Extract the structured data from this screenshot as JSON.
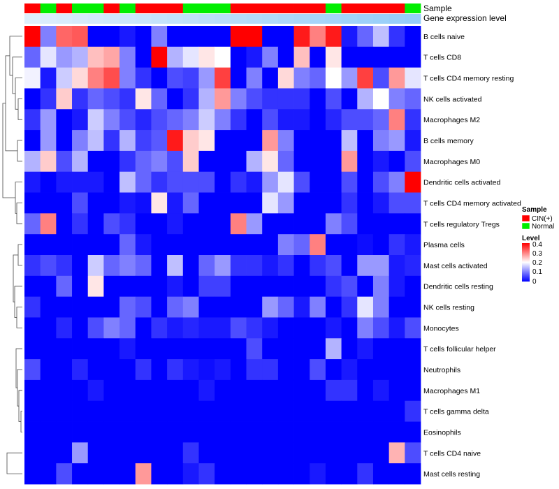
{
  "chart_data": {
    "type": "heatmap",
    "title": "",
    "annotation_labels": {
      "sample": "Sample",
      "gene": "Gene expression level"
    },
    "legend": {
      "sample_title": "Sample",
      "sample_items": [
        {
          "label": "CIN(+)",
          "color": "#ff0000"
        },
        {
          "label": "Normal",
          "color": "#00ee00"
        }
      ],
      "level_title": "Level",
      "level_ticks": [
        "0.4",
        "0.3",
        "0.2",
        "0.1",
        "0"
      ],
      "level_range": [
        0,
        0.4
      ]
    },
    "color_scale": {
      "low": "#0000ff",
      "mid": "#ffffff",
      "high": "#ff0000",
      "min": 0,
      "max": 0.4
    },
    "sample_groups": [
      "C",
      "N",
      "C",
      "N",
      "N",
      "C",
      "N",
      "C",
      "C",
      "C",
      "N",
      "N",
      "N",
      "C",
      "C",
      "C",
      "C",
      "C",
      "C",
      "N",
      "C",
      "C",
      "C",
      "C",
      "N"
    ],
    "gene_level": [
      0.02,
      0.04,
      0.06,
      0.08,
      0.1,
      0.12,
      0.14,
      0.16,
      0.18,
      0.2,
      0.22,
      0.24,
      0.26,
      0.28,
      0.3,
      0.32,
      0.34,
      0.36,
      0.38,
      0.4,
      0.42,
      0.44,
      0.46,
      0.48,
      0.5
    ],
    "rows": [
      "B cells naive",
      "T cells CD8",
      "T cells CD4 memory resting",
      "NK cells activated",
      "Macrophages M2",
      "B cells memory",
      "Macrophages M0",
      "Dendritic cells activated",
      "T cells CD4 memory activated",
      "T cells regulatory  Tregs",
      "Plasma cells",
      "Mast cells activated",
      "Dendritic cells resting",
      "NK cells resting",
      "Monocytes",
      "T cells follicular helper",
      "Neutrophils",
      "Macrophages M1",
      "T cells gamma delta",
      "Eosinophils",
      "T cells CD4 naive",
      "Mast cells resting"
    ],
    "values": [
      [
        0.4,
        0.1,
        0.32,
        0.33,
        0,
        0,
        0.02,
        0,
        0.1,
        0,
        0,
        0,
        0,
        0.4,
        0.4,
        0,
        0,
        0.38,
        0.3,
        0.38,
        0.02,
        0.08,
        0.15,
        0.04,
        0
      ],
      [
        0.08,
        0.18,
        0.12,
        0.14,
        0.25,
        0.27,
        0.1,
        0,
        0.4,
        0.14,
        0.18,
        0.22,
        0.2,
        0,
        0.02,
        0.1,
        0,
        0.25,
        0,
        0.22,
        0,
        0,
        0,
        0,
        0
      ],
      [
        0.19,
        0.02,
        0.16,
        0.23,
        0.3,
        0.34,
        0.1,
        0.04,
        0,
        0.06,
        0.05,
        0.12,
        0.35,
        0,
        0.1,
        0,
        0.23,
        0.1,
        0.08,
        0.2,
        0.12,
        0.35,
        0.06,
        0.28,
        0.18
      ],
      [
        0,
        0.04,
        0.24,
        0.04,
        0.08,
        0.06,
        0.04,
        0.22,
        0.08,
        0,
        0.04,
        0.14,
        0.28,
        0.1,
        0.06,
        0.04,
        0.04,
        0.04,
        0,
        0.06,
        0,
        0.14,
        0.2,
        0.1,
        0.08
      ],
      [
        0.04,
        0.12,
        0,
        0.02,
        0.16,
        0.1,
        0.06,
        0.03,
        0.06,
        0.08,
        0.1,
        0.16,
        0.1,
        0.04,
        0,
        0.06,
        0.02,
        0.02,
        0,
        0.03,
        0.06,
        0.06,
        0.08,
        0.3,
        0.04
      ],
      [
        0,
        0.12,
        0,
        0.1,
        0.15,
        0.04,
        0.14,
        0.05,
        0.07,
        0.38,
        0.24,
        0.22,
        0,
        0,
        0,
        0.28,
        0.1,
        0,
        0,
        0,
        0.15,
        0,
        0.1,
        0.12,
        0.02
      ],
      [
        0.14,
        0.24,
        0.06,
        0.14,
        0,
        0,
        0.04,
        0.08,
        0.1,
        0.06,
        0.24,
        0,
        0,
        0,
        0.14,
        0.22,
        0.08,
        0,
        0,
        0,
        0.28,
        0,
        0.02,
        0,
        0.06
      ],
      [
        0.02,
        0,
        0.02,
        0.02,
        0.02,
        0,
        0.15,
        0.08,
        0.04,
        0.06,
        0.06,
        0.06,
        0,
        0.04,
        0.02,
        0.12,
        0.18,
        0.06,
        0,
        0,
        0.06,
        0,
        0.06,
        0.1,
        0.4
      ],
      [
        0,
        0,
        0,
        0.06,
        0,
        0,
        0.02,
        0.01,
        0.22,
        0.02,
        0.08,
        0,
        0,
        0,
        0,
        0.18,
        0.12,
        0,
        0,
        0,
        0.04,
        0,
        0.02,
        0.06,
        0.06
      ],
      [
        0.08,
        0.3,
        0,
        0.04,
        0,
        0.06,
        0.04,
        0,
        0,
        0.02,
        0,
        0,
        0,
        0.3,
        0.12,
        0,
        0,
        0,
        0,
        0.1,
        0.06,
        0,
        0,
        0,
        0
      ],
      [
        0,
        0,
        0,
        0,
        0,
        0,
        0.08,
        0.02,
        0,
        0,
        0,
        0,
        0,
        0,
        0,
        0,
        0.1,
        0.08,
        0.3,
        0,
        0,
        0.01,
        0,
        0.04,
        0.02
      ],
      [
        0.04,
        0.06,
        0.04,
        0,
        0.16,
        0.08,
        0.1,
        0.08,
        0,
        0.15,
        0,
        0.08,
        0.12,
        0.04,
        0.04,
        0.02,
        0.04,
        0,
        0.04,
        0.06,
        0,
        0.12,
        0.12,
        0.02,
        0.03
      ],
      [
        0,
        0,
        0.08,
        0,
        0.22,
        0,
        0,
        0,
        0,
        0.02,
        0,
        0.05,
        0.05,
        0,
        0,
        0,
        0,
        0,
        0,
        0.04,
        0.06,
        0,
        0.1,
        0.02,
        0
      ],
      [
        0.04,
        0,
        0,
        0,
        0,
        0,
        0.08,
        0.06,
        0,
        0.08,
        0.1,
        0,
        0,
        0,
        0,
        0.12,
        0.08,
        0.02,
        0.1,
        0,
        0.04,
        0.18,
        0.1,
        0,
        0
      ],
      [
        0,
        0,
        0.03,
        0,
        0.06,
        0.1,
        0.08,
        0,
        0.04,
        0.02,
        0.03,
        0.02,
        0.02,
        0.06,
        0.04,
        0.02,
        0,
        0,
        0,
        0.02,
        0,
        0.1,
        0.06,
        0.02,
        0.06
      ],
      [
        0,
        0,
        0,
        0,
        0,
        0,
        0.02,
        0,
        0,
        0,
        0,
        0,
        0,
        0,
        0.06,
        0,
        0,
        0,
        0,
        0.14,
        0,
        0.02,
        0,
        0,
        0
      ],
      [
        0.06,
        0,
        0,
        0.03,
        0,
        0,
        0,
        0.04,
        0,
        0.04,
        0.02,
        0.01,
        0.02,
        0,
        0.04,
        0.04,
        0,
        0,
        0.06,
        0,
        0.02,
        0,
        0,
        0,
        0
      ],
      [
        0,
        0,
        0,
        0,
        0.02,
        0,
        0,
        0,
        0,
        0,
        0,
        0.02,
        0,
        0,
        0,
        0,
        0,
        0,
        0,
        0.04,
        0.04,
        0,
        0.02,
        0,
        0
      ],
      [
        0,
        0,
        0,
        0,
        0,
        0,
        0,
        0,
        0,
        0,
        0,
        0,
        0,
        0,
        0,
        0,
        0,
        0,
        0,
        0,
        0,
        0,
        0,
        0,
        0.04
      ],
      [
        0,
        0,
        0,
        0,
        0,
        0,
        0,
        0,
        0,
        0,
        0,
        0,
        0,
        0,
        0,
        0,
        0,
        0,
        0,
        0,
        0,
        0,
        0,
        0,
        0
      ],
      [
        0,
        0,
        0,
        0.12,
        0,
        0,
        0,
        0,
        0,
        0,
        0.04,
        0,
        0,
        0,
        0,
        0,
        0,
        0,
        0,
        0,
        0,
        0,
        0,
        0.26,
        0.06
      ],
      [
        0,
        0,
        0.06,
        0,
        0,
        0,
        0,
        0.28,
        0,
        0,
        0.02,
        0.04,
        0,
        0,
        0,
        0,
        0,
        0,
        0.02,
        0,
        0,
        0.04,
        0,
        0,
        0
      ]
    ]
  }
}
